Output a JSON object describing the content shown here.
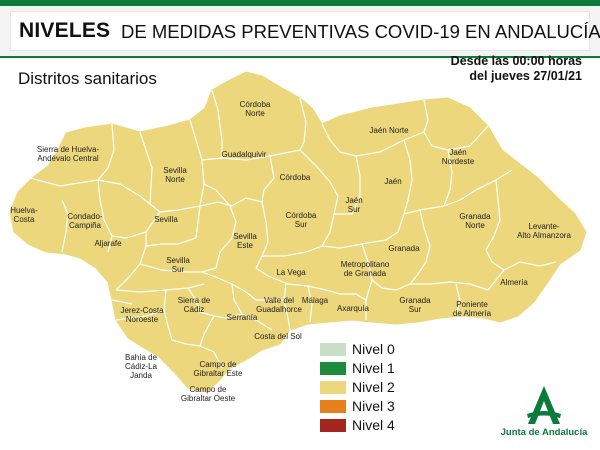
{
  "header": {
    "title_bold": "NIVELES",
    "title_rest": "DE MEDIDAS PREVENTIVAS COVID-19 EN ANDALUCÍA",
    "accent_color": "#0b7a3b"
  },
  "subtitle": "Distritos sanitarios",
  "date": {
    "line1": "Desde las 00:00 horas",
    "line2": "del jueves 27/01/21"
  },
  "districts": [
    {
      "lines": [
        "Sierra de Huelva-",
        "Andévalo Central"
      ],
      "level": 2
    },
    {
      "lines": [
        "Huelva-",
        "Costa"
      ],
      "level": 2
    },
    {
      "lines": [
        "Condado-",
        "Campiña"
      ],
      "level": 2
    },
    {
      "lines": [
        "Sevilla",
        "Norte"
      ],
      "level": 2
    },
    {
      "lines": [
        "Sevilla"
      ],
      "level": 2
    },
    {
      "lines": [
        "Aljarafe"
      ],
      "level": 2
    },
    {
      "lines": [
        "Sevilla",
        "Sur"
      ],
      "level": 2
    },
    {
      "lines": [
        "Sevilla",
        "Este"
      ],
      "level": 2
    },
    {
      "lines": [
        "Córdoba",
        "Norte"
      ],
      "level": 2
    },
    {
      "lines": [
        "Guadalquivir"
      ],
      "level": 2
    },
    {
      "lines": [
        "Córdoba"
      ],
      "level": 2
    },
    {
      "lines": [
        "Córdoba",
        "Sur"
      ],
      "level": 2
    },
    {
      "lines": [
        "Jaén Norte"
      ],
      "level": 2
    },
    {
      "lines": [
        "Jaén",
        "Nordeste"
      ],
      "level": 2
    },
    {
      "lines": [
        "Jaén"
      ],
      "level": 2
    },
    {
      "lines": [
        "Jaén",
        "Sur"
      ],
      "level": 2
    },
    {
      "lines": [
        "Granada",
        "Norte"
      ],
      "level": 2
    },
    {
      "lines": [
        "Levante-",
        "Alto Almanzora"
      ],
      "level": 2
    },
    {
      "lines": [
        "Granada"
      ],
      "level": 2
    },
    {
      "lines": [
        "Metropolitano",
        "de Granada"
      ],
      "level": 2
    },
    {
      "lines": [
        "Almería"
      ],
      "level": 2
    },
    {
      "lines": [
        "La Vega"
      ],
      "level": 2
    },
    {
      "lines": [
        "Jerez-Costa",
        "Noroeste"
      ],
      "level": 2
    },
    {
      "lines": [
        "Sierra de",
        "Cádiz"
      ],
      "level": 2
    },
    {
      "lines": [
        "Valle del",
        "Guadalhorce"
      ],
      "level": 2
    },
    {
      "lines": [
        "Málaga"
      ],
      "level": 2
    },
    {
      "lines": [
        "Axarquía"
      ],
      "level": 2
    },
    {
      "lines": [
        "Granada",
        "Sur"
      ],
      "level": 2
    },
    {
      "lines": [
        "Poniente",
        "de Almería"
      ],
      "level": 2
    },
    {
      "lines": [
        "Serranía"
      ],
      "level": 2
    },
    {
      "lines": [
        "Costa del Sol"
      ],
      "level": 2
    },
    {
      "lines": [
        "Bahía de",
        "Cádiz-La",
        "Janda"
      ],
      "level": 2
    },
    {
      "lines": [
        "Campo de",
        "Gibraltar Este"
      ],
      "level": 2
    },
    {
      "lines": [
        "Campo de",
        "Gibraltar Oeste"
      ],
      "level": 2
    }
  ],
  "legend": [
    {
      "label": "Nivel 0",
      "color": "#c9dfc7"
    },
    {
      "label": "Nivel 1",
      "color": "#1e8a3c"
    },
    {
      "label": "Nivel 2",
      "color": "#ecd77c"
    },
    {
      "label": "Nivel 3",
      "color": "#e5801c"
    },
    {
      "label": "Nivel 4",
      "color": "#a3271f"
    }
  ],
  "logo": {
    "text": "Junta de Andalucía",
    "icon": "junta-de-andalucia-logo-icon",
    "color": "#0b7a3b"
  },
  "map_fill_color": "#ecd77c",
  "map_border_color": "#ffffff"
}
